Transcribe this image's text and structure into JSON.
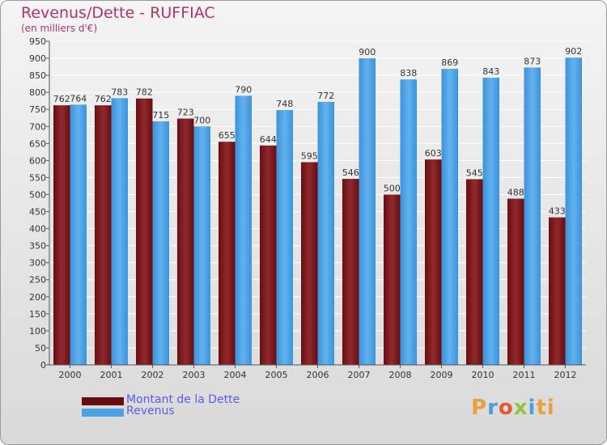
{
  "chart_data": {
    "type": "bar",
    "title": "Revenus/Dette - RUFFIAC",
    "subtitle": "(en milliers d'€)",
    "categories": [
      "2000",
      "2001",
      "2002",
      "2003",
      "2004",
      "2005",
      "2006",
      "2007",
      "2008",
      "2009",
      "2010",
      "2011",
      "2012"
    ],
    "series": [
      {
        "name": "Montant de la Dette",
        "color": "#7b1418",
        "values": [
          762,
          762,
          782,
          723,
          655,
          644,
          595,
          546,
          500,
          603,
          545,
          488,
          433
        ]
      },
      {
        "name": "Revenus",
        "color": "#3d95dc",
        "values": [
          764,
          783,
          715,
          700,
          790,
          748,
          772,
          900,
          838,
          869,
          843,
          873,
          902
        ]
      }
    ],
    "ylim": [
      0,
      950
    ],
    "ytick_step": 50,
    "grid": true,
    "legend_position": "bottom-left",
    "data_labels": true
  },
  "logo": {
    "text": "Proxiti",
    "letters": [
      "P",
      "r",
      "o",
      "x",
      "i",
      "ti"
    ]
  }
}
